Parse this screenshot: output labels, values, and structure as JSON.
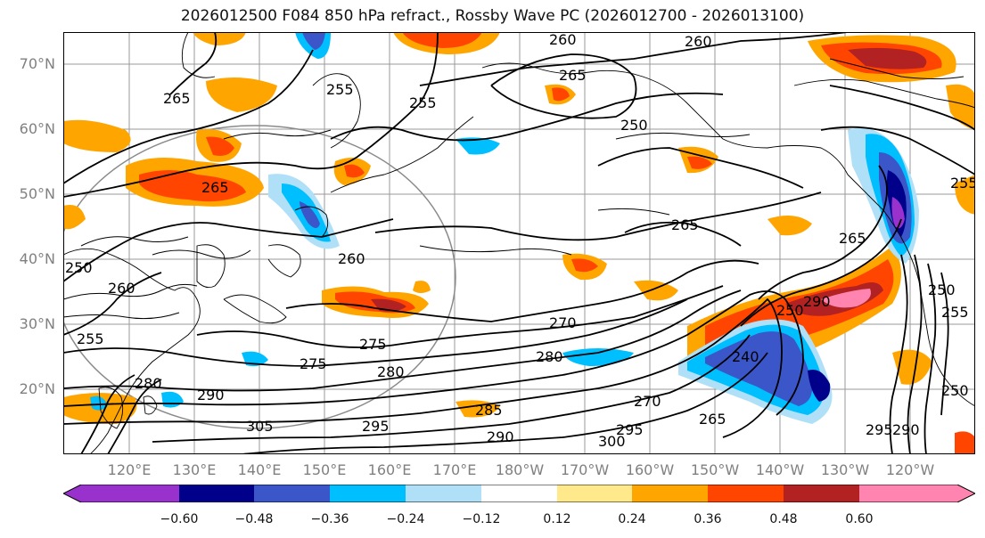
{
  "title": "2026012500 F084 850 hPa refract., Rossby Wave PC (2026012700 - 2026013100)",
  "lat_labels": [
    "70°N",
    "60°N",
    "50°N",
    "40°N",
    "30°N",
    "20°N"
  ],
  "lon_labels": [
    "120°E",
    "130°E",
    "140°E",
    "150°E",
    "160°E",
    "170°E",
    "180°W",
    "170°W",
    "160°W",
    "150°W",
    "140°W",
    "130°W",
    "120°W"
  ],
  "contour_labels": [
    "260",
    "260",
    "265",
    "265",
    "255",
    "255",
    "250",
    "265",
    "260",
    "265",
    "250",
    "260",
    "255",
    "270",
    "275",
    "275",
    "280",
    "280",
    "285",
    "290",
    "300",
    "295",
    "305",
    "290",
    "295",
    "280",
    "270",
    "265",
    "265",
    "290",
    "295",
    "290",
    "250",
    "255",
    "255",
    "250",
    "240",
    "250"
  ],
  "colorbar": {
    "colors": [
      "#9932cc",
      "#00008b",
      "#3a56c8",
      "#00bfff",
      "#b0e0f8",
      "#ffffff",
      "#ffe98a",
      "#ffa500",
      "#ff4500",
      "#b22222",
      "#ff85b0"
    ],
    "tick_labels": [
      "−0.60",
      "−0.48",
      "−0.36",
      "−0.24",
      "−0.12",
      "0.12",
      "0.24",
      "0.36",
      "0.48",
      "0.60"
    ]
  },
  "fill_colors": {
    "orange": "#ffa500",
    "redorange": "#ff4500",
    "darkred": "#b22222",
    "pink": "#ff85b0",
    "yellow": "#ffe98a",
    "cyan": "#00bfff",
    "lightblue": "#b0e0f8",
    "blue": "#3a56c8",
    "navy": "#00008b",
    "purple": "#9932cc"
  }
}
